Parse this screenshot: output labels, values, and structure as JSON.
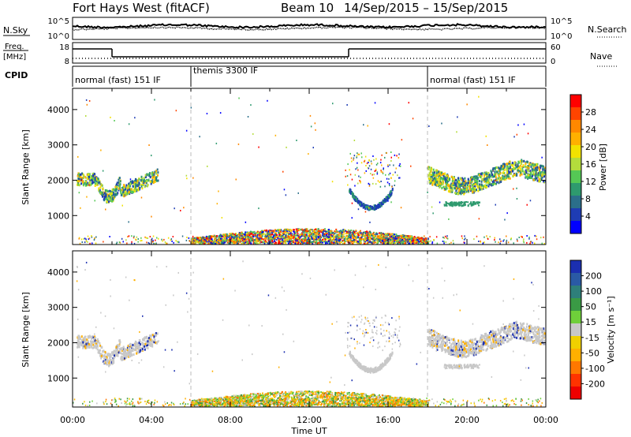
{
  "header": {
    "station": "Fort Hays West (fitACF)",
    "beam": "Beam 10",
    "daterange": "14/Sep/2015 – 15/Sep/2015"
  },
  "noise_panel": {
    "left_label": "N.Sky",
    "right_label": "N.Search",
    "left_ticks": [
      "10^5",
      "10^0"
    ],
    "right_ticks": [
      "10^5",
      "10^0"
    ]
  },
  "freq_panel": {
    "left_label_1": "Freq.",
    "left_label_2": "[MHz]",
    "right_label": "Nave",
    "left_ticks": [
      "18",
      "8"
    ],
    "right_ticks": [
      "60",
      "0"
    ],
    "freq_segments": [
      {
        "start": 0,
        "end": 2,
        "level": "high"
      },
      {
        "start": 2,
        "end": 14,
        "level": "low"
      },
      {
        "start": 14,
        "end": 24,
        "level": "high"
      }
    ]
  },
  "cpid": {
    "label": "CPID",
    "segments": [
      {
        "start": 0,
        "end": 6,
        "text": "normal (fast) 151 IF"
      },
      {
        "start": 6,
        "end": 18,
        "text": "themis 3300 IF"
      },
      {
        "start": 18,
        "end": 24,
        "text": "normal (fast) 151 IF"
      }
    ]
  },
  "power_colorbar": {
    "label": "Power [dB]",
    "ticks": [
      "28",
      "24",
      "20",
      "16",
      "12",
      "8",
      "4"
    ],
    "colors": [
      "#ff0000",
      "#ff4400",
      "#ff8800",
      "#ffb000",
      "#f2e200",
      "#b4dc3c",
      "#55c855",
      "#2e9a6e",
      "#2b6f8a",
      "#1e3cb4",
      "#0000ff"
    ]
  },
  "velocity_colorbar": {
    "label": "Velocity [m s⁻¹]",
    "ticks": [
      "200",
      "100",
      "50",
      "15",
      "-15",
      "-50",
      "-100",
      "-200"
    ],
    "colors": [
      "#1b2fb0",
      "#2a5aa5",
      "#2e7f7a",
      "#3a9a45",
      "#6fcf3a",
      "#c8c8c8",
      "#f0d000",
      "#ffb000",
      "#ff7800",
      "#ff3300",
      "#ee0000"
    ]
  },
  "chart_data": {
    "type": "heatmap",
    "xlabel": "Time UT",
    "ylabel": "Slant Range [km]",
    "x_ticks": [
      "00:00",
      "04:00",
      "08:00",
      "12:00",
      "16:00",
      "20:00",
      "00:00"
    ],
    "y_ticks": [
      1000,
      2000,
      3000,
      4000
    ],
    "xlim": [
      0,
      24
    ],
    "ylim": [
      180,
      4600
    ],
    "cpid_change_hours": [
      6,
      18
    ],
    "features": [
      {
        "name": "morning-band",
        "t_start": 0.2,
        "t_end": 4.3,
        "range_center": 2050,
        "thickness": 250
      },
      {
        "name": "midday-arc",
        "t_start": 14.0,
        "t_end": 16.2,
        "range_min": 1250,
        "thickness": 120
      },
      {
        "name": "evening-band",
        "t_start": 18.0,
        "t_end": 24.0,
        "range_center": 2200,
        "thickness": 300
      },
      {
        "name": "ground-scatter",
        "t_start": 6.0,
        "t_end": 18.0,
        "range_min": 200,
        "range_max": 650
      }
    ]
  }
}
